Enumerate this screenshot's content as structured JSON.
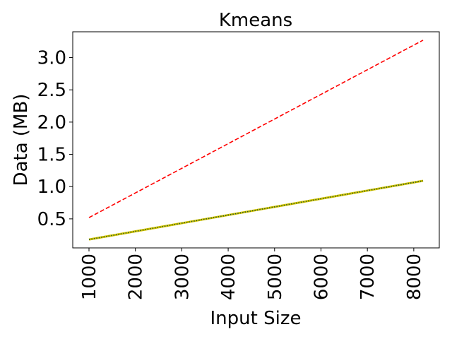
{
  "chart_data": {
    "type": "line",
    "title": "Kmeans",
    "xlabel": "Input Size",
    "ylabel": "Data (MB)",
    "xlim": [
      650,
      8550
    ],
    "ylim": [
      0.05,
      3.4
    ],
    "xticks": [
      1000,
      2000,
      3000,
      4000,
      5000,
      6000,
      7000,
      8000
    ],
    "xtick_labels": [
      "1000",
      "2000",
      "3000",
      "4000",
      "5000",
      "6000",
      "7000",
      "8000"
    ],
    "yticks": [
      0.5,
      1.0,
      1.5,
      2.0,
      2.5,
      3.0
    ],
    "ytick_labels": [
      "0.5",
      "1.0",
      "1.5",
      "2.0",
      "2.5",
      "3.0"
    ],
    "grid": false,
    "series": [
      {
        "x": [
          1000,
          8200
        ],
        "y": [
          0.52,
          3.27
        ],
        "color": "#ff0000",
        "style": "dashed"
      },
      {
        "x": [
          1000,
          8200
        ],
        "y": [
          0.18,
          1.09
        ],
        "color": "#d4c400",
        "style": "solid"
      },
      {
        "x": [
          1000,
          8200
        ],
        "y": [
          0.18,
          1.09
        ],
        "color": "#2a5a2a",
        "style": "dotted"
      }
    ]
  }
}
